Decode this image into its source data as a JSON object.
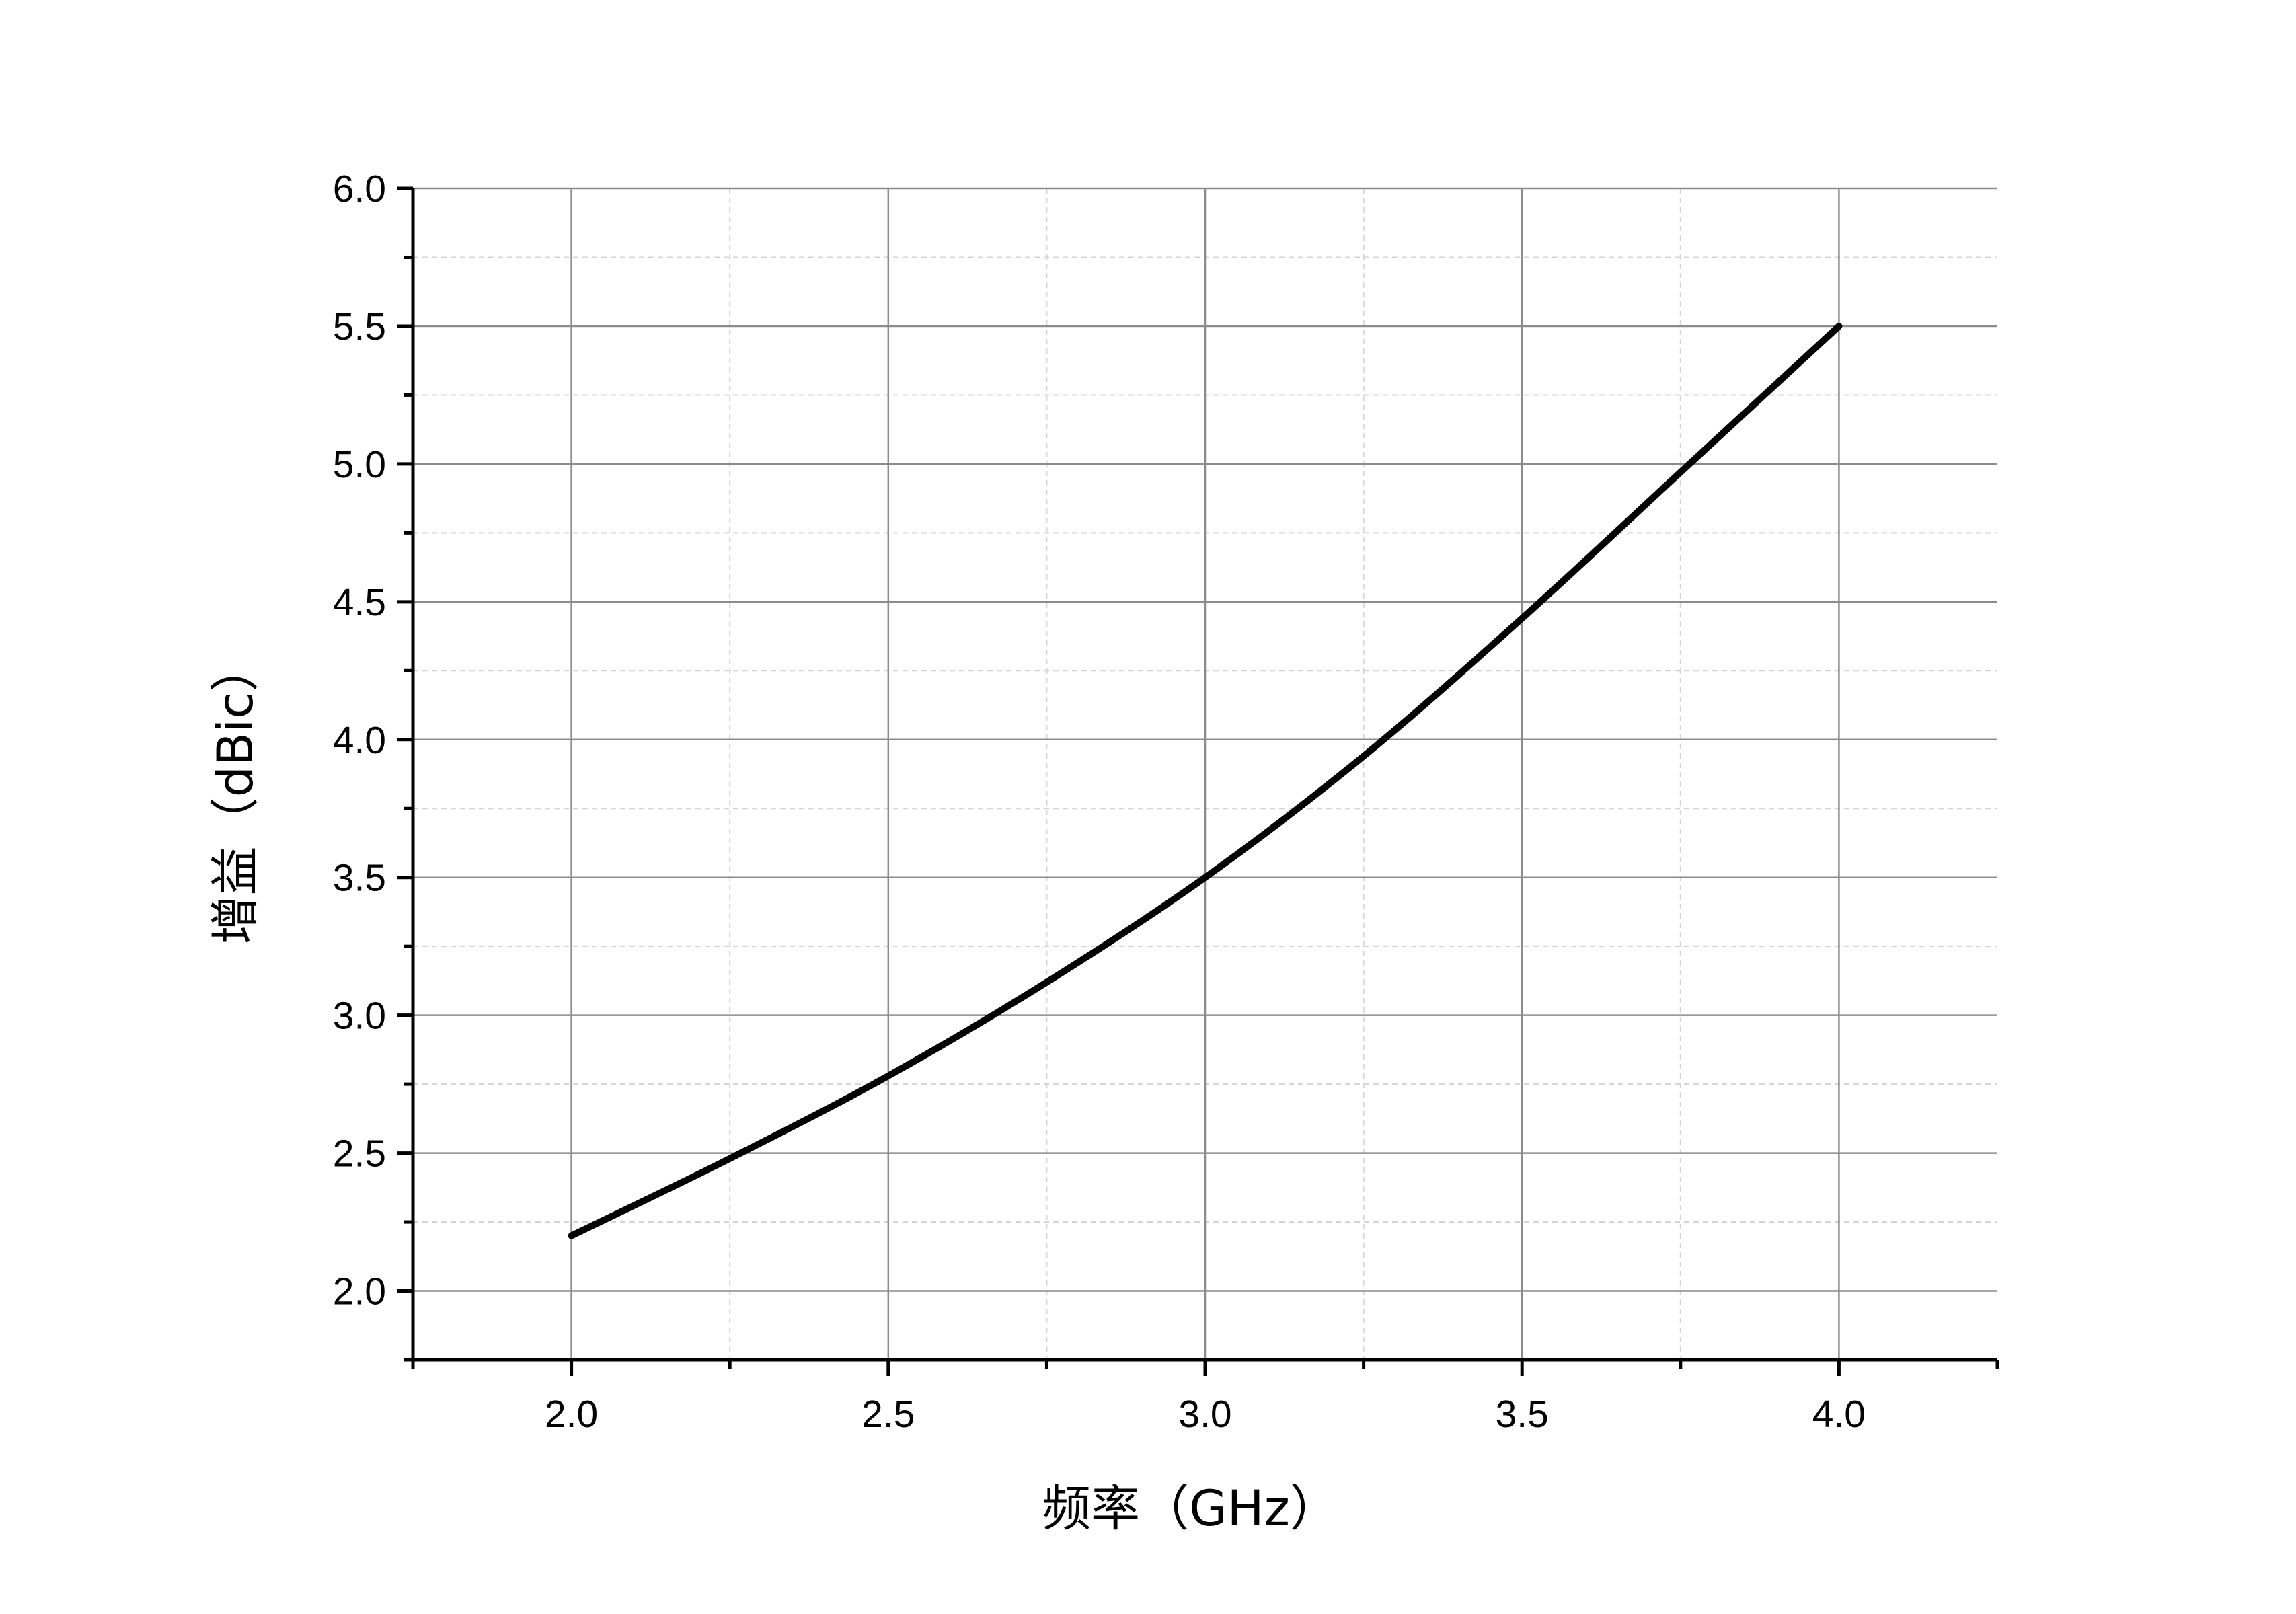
{
  "chart_data": {
    "type": "line",
    "xlabel": "频率（GHz）",
    "ylabel": "增益（dBic）",
    "xlim": [
      1.75,
      4.25
    ],
    "ylim": [
      1.75,
      6.0
    ],
    "x_ticks": [
      2.0,
      2.5,
      3.0,
      3.5,
      4.0
    ],
    "x_tick_labels": [
      "2.0",
      "2.5",
      "3.0",
      "3.5",
      "4.0"
    ],
    "y_ticks": [
      2.0,
      2.5,
      3.0,
      3.5,
      4.0,
      4.5,
      5.0,
      5.5,
      6.0
    ],
    "y_tick_labels": [
      "2.0",
      "2.5",
      "3.0",
      "3.5",
      "4.0",
      "4.5",
      "5.0",
      "5.5",
      "6.0"
    ],
    "grid": true,
    "minor_grid": true,
    "series": [
      {
        "color": "#000000",
        "x": [
          2.0,
          2.25,
          2.5,
          2.75,
          3.0,
          3.25,
          3.5,
          3.75,
          4.0
        ],
        "y": [
          2.2,
          2.48,
          2.78,
          3.12,
          3.5,
          3.94,
          4.44,
          4.97,
          5.5
        ]
      }
    ]
  }
}
